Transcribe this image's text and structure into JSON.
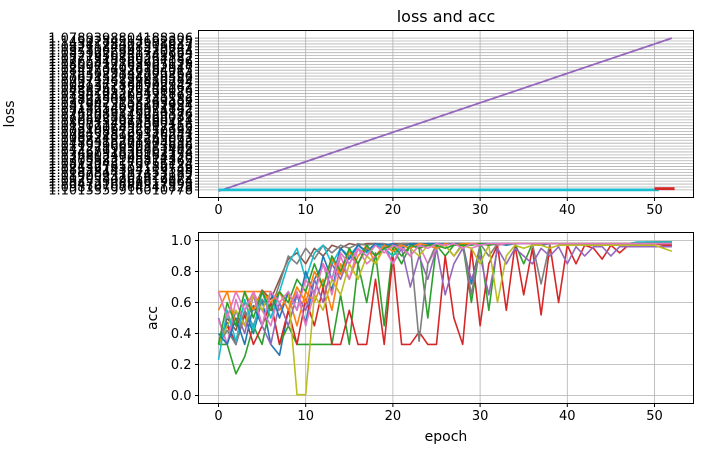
{
  "title": "loss and acc",
  "palette": [
    "#1f77b4",
    "#ff7f0e",
    "#2ca02c",
    "#d62728",
    "#9467bd",
    "#8c564b",
    "#e377c2",
    "#7f7f7f",
    "#bcbd22",
    "#17becf"
  ],
  "grid_color": "#b0b0b0",
  "chart_data": [
    {
      "type": "line",
      "id": "loss-subplot",
      "title": "loss and acc",
      "xlabel": "",
      "ylabel": "loss",
      "grid": true,
      "legend": "none",
      "x_ticks": [
        0,
        10,
        20,
        30,
        40,
        50
      ],
      "xlim": [
        -2.6,
        54.6
      ],
      "y_axis_type": "categorical-strings",
      "y_categories_bottom_to_top": [
        "1.1013359916010778",
        "1.0981070764541828",
        "1.1047216698917393",
        "1.0925330968819864",
        "1.1120584201812872",
        "1.0890023707427162",
        "1.1187344117453185",
        "1.0853914304119548",
        "1.1243276559182736",
        "1.0812045170756124",
        "1.1305982140871265",
        "1.0778123905514370",
        "1.1368054920163258",
        "1.0746291836502174",
        "1.1422719350861482",
        "1.0719296090313686",
        "1.1480356271904835",
        "1.0798413268745092",
        "1.1037240981265073",
        "1.0764528109376241",
        "1.1094083726150934",
        "1.0731906452817365",
        "1.1150217834092156",
        "1.0807134962580413",
        "1.1206452918360724",
        "1.0775028341965087",
        "1.1262083149250376",
        "1.0743916278054192",
        "1.1318254036971842",
        "1.0819473605182934",
        "1.1374029158263407",
        "1.0786250917340586",
        "1.1430184260735192",
        "1.0754108263491875",
        "1.1486245370158026",
        "1.0829361750248163",
        "1.1041372861502947",
        "1.0797245138620754",
        "1.1097458236910582",
        "1.0765132084729356",
        "1.1153629147805263",
        "1.0841507926384015",
        "1.1209734058162947",
        "1.0809412763905128",
        "1.1265840169257036",
        "1.0777319850264187",
        "1.1321956280341925",
        "1.0853226941730864",
        "1.1378062391420753",
        "1.0821134028519642",
        "1.1434178402501937",
        "1.1490284513692825",
        "1.0789398804188306"
      ],
      "series": [
        {
          "color": "#9467bd",
          "width": 1.8,
          "points": [
            [
              0,
              -0.4
            ],
            [
              52,
              52
            ]
          ]
        },
        {
          "color": "#17becf",
          "width": 2.8,
          "points": [
            [
              0,
              0
            ],
            [
              50.5,
              0
            ]
          ]
        },
        {
          "color": "#d62728",
          "width": 2.8,
          "points": [
            [
              50,
              0.4
            ],
            [
              52.3,
              0.4
            ]
          ]
        }
      ]
    },
    {
      "type": "line",
      "id": "acc-subplot",
      "xlabel": "epoch",
      "ylabel": "acc",
      "grid": true,
      "legend": "none",
      "x_ticks": [
        0,
        10,
        20,
        30,
        40,
        50
      ],
      "xlim": [
        -2.6,
        54.6
      ],
      "ylim": [
        -0.05,
        1.05
      ],
      "y_tick_values": [
        0.0,
        0.2,
        0.4,
        0.6,
        0.8,
        1.0
      ],
      "y_tick_labels": [
        "0.0",
        "0.2",
        "0.4",
        "0.6",
        "0.8",
        "1.0"
      ],
      "series": [
        {
          "color": "#1f77b4",
          "values": [
            0.33,
            0.47,
            0.33,
            0.55,
            0.4,
            0.62,
            0.33,
            0.26,
            0.55,
            0.65,
            0.47,
            0.75,
            0.85,
            0.68,
            0.92,
            0.85,
            0.95,
            0.9,
            0.97,
            0.95,
            0.98,
            0.97,
            0.98,
            0.96,
            0.98,
            0.98,
            0.97,
            0.98,
            0.98,
            0.72,
            0.97,
            0.98,
            0.98,
            0.97,
            0.98,
            0.98,
            0.98,
            0.97,
            0.98,
            0.98,
            0.98,
            0.98,
            0.98,
            0.98,
            0.98,
            0.98,
            0.98,
            0.98,
            0.98,
            0.98,
            0.98,
            0.98,
            0.98
          ]
        },
        {
          "color": "#ff7f0e",
          "values": [
            0.67,
            0.67,
            0.67,
            0.67,
            0.67,
            0.67,
            0.67,
            0.55,
            0.65,
            0.45,
            0.67,
            0.6,
            0.75,
            0.55,
            0.85,
            0.75,
            0.9,
            0.97,
            0.85,
            0.97,
            0.95,
            0.98,
            0.98,
            0.98,
            0.97,
            0.98,
            0.98,
            0.98,
            0.98,
            0.98,
            0.98,
            0.98,
            0.97,
            0.98,
            0.98,
            0.98,
            0.98,
            0.98,
            0.98,
            0.98,
            0.98,
            0.98,
            0.98,
            0.98,
            0.98,
            0.98,
            0.98,
            0.98,
            0.98,
            0.98,
            0.98,
            0.98,
            0.98
          ]
        },
        {
          "color": "#2ca02c",
          "values": [
            0.33,
            0.33,
            0.14,
            0.25,
            0.45,
            0.33,
            0.6,
            0.33,
            0.45,
            0.33,
            0.33,
            0.33,
            0.33,
            0.33,
            0.65,
            0.33,
            0.85,
            0.6,
            0.92,
            0.45,
            0.95,
            0.85,
            0.97,
            0.95,
            0.5,
            0.97,
            0.9,
            0.97,
            0.98,
            0.6,
            0.97,
            0.55,
            0.97,
            0.98,
            0.98,
            0.85,
            0.98,
            0.98,
            0.98,
            0.98,
            0.98,
            0.98,
            0.98,
            0.98,
            0.98,
            0.98,
            0.98,
            0.98,
            0.98,
            0.99,
            0.99,
            0.99,
            0.99
          ]
        },
        {
          "color": "#d62728",
          "values": [
            0.33,
            0.45,
            0.33,
            0.52,
            0.33,
            0.45,
            0.6,
            0.33,
            0.55,
            0.33,
            0.62,
            0.45,
            0.7,
            0.33,
            0.33,
            0.55,
            0.33,
            0.33,
            0.75,
            0.33,
            0.9,
            0.33,
            0.33,
            0.41,
            0.33,
            0.33,
            0.9,
            0.5,
            0.33,
            0.95,
            0.45,
            0.85,
            0.97,
            0.55,
            0.97,
            0.65,
            0.95,
            0.52,
            0.97,
            0.6,
            0.97,
            0.85,
            0.97,
            0.95,
            0.88,
            0.97,
            0.92,
            0.97,
            0.97,
            0.98,
            0.98,
            0.97,
            0.97
          ]
        },
        {
          "color": "#9467bd",
          "values": [
            0.5,
            0.33,
            0.55,
            0.4,
            0.65,
            0.45,
            0.33,
            0.6,
            0.45,
            0.65,
            0.55,
            0.75,
            0.6,
            0.85,
            0.75,
            0.9,
            0.85,
            0.95,
            0.9,
            0.97,
            0.85,
            0.95,
            0.7,
            0.9,
            0.75,
            0.95,
            0.65,
            0.85,
            0.95,
            0.75,
            0.9,
            0.65,
            0.95,
            0.85,
            0.95,
            0.9,
            0.85,
            0.95,
            0.9,
            0.96,
            0.85,
            0.96,
            0.9,
            0.96,
            0.96,
            0.9,
            0.96,
            0.96,
            0.96,
            0.96,
            0.96,
            0.96,
            0.96
          ]
        },
        {
          "color": "#8c564b",
          "values": [
            0.33,
            0.5,
            0.42,
            0.6,
            0.55,
            0.68,
            0.62,
            0.75,
            0.88,
            0.92,
            0.85,
            0.95,
            0.9,
            0.97,
            0.95,
            0.98,
            0.97,
            0.98,
            0.98,
            0.97,
            0.98,
            0.98,
            0.98,
            0.98,
            0.98,
            0.98,
            0.98,
            0.98,
            0.98,
            0.98,
            0.98,
            0.98,
            0.98,
            0.98,
            0.98,
            0.98,
            0.98,
            0.98,
            0.98,
            0.98,
            0.98,
            0.98,
            0.98,
            0.98,
            0.98,
            0.98,
            0.98,
            0.98,
            0.98,
            0.98,
            0.99,
            0.99,
            0.99
          ]
        },
        {
          "color": "#e377c2",
          "values": [
            0.49,
            0.33,
            0.62,
            0.45,
            0.67,
            0.55,
            0.45,
            0.67,
            0.55,
            0.67,
            0.45,
            0.67,
            0.85,
            0.65,
            0.9,
            0.75,
            0.95,
            0.85,
            0.9,
            0.95,
            0.85,
            0.97,
            0.9,
            0.97,
            0.85,
            0.95,
            0.97,
            0.9,
            0.97,
            0.95,
            0.97,
            0.98,
            0.97,
            0.98,
            0.98,
            0.98,
            0.98,
            0.98,
            0.98,
            0.98,
            0.98,
            0.98,
            0.98,
            0.98,
            0.98,
            0.98,
            0.98,
            0.98,
            0.98,
            0.98,
            0.98,
            0.98,
            0.98
          ]
        },
        {
          "color": "#7f7f7f",
          "values": [
            0.33,
            0.42,
            0.33,
            0.55,
            0.45,
            0.62,
            0.55,
            0.72,
            0.9,
            0.85,
            0.95,
            0.88,
            0.97,
            0.92,
            0.97,
            0.95,
            0.98,
            0.97,
            0.98,
            0.98,
            0.97,
            0.98,
            0.98,
            0.35,
            0.85,
            0.98,
            0.97,
            0.9,
            0.98,
            0.65,
            0.98,
            0.9,
            0.98,
            0.98,
            0.98,
            0.98,
            0.98,
            0.72,
            0.98,
            0.98,
            0.98,
            0.98,
            0.98,
            0.98,
            0.98,
            0.98,
            0.98,
            0.98,
            0.98,
            0.98,
            0.98,
            0.98,
            0.98
          ]
        },
        {
          "color": "#bcbd22",
          "values": [
            0.33,
            0.45,
            0.55,
            0.45,
            0.65,
            0.55,
            0.67,
            0.6,
            0.67,
            0.005,
            0.005,
            0.65,
            0.55,
            0.75,
            0.65,
            0.85,
            0.75,
            0.9,
            0.85,
            0.95,
            0.9,
            0.97,
            0.95,
            0.9,
            0.97,
            0.95,
            0.97,
            0.9,
            0.97,
            0.95,
            0.85,
            0.97,
            0.6,
            0.9,
            0.97,
            0.95,
            0.97,
            0.97,
            0.95,
            0.97,
            0.97,
            0.97,
            0.97,
            0.97,
            0.97,
            0.97,
            0.97,
            0.97,
            0.97,
            0.97,
            0.97,
            0.95,
            0.93
          ]
        },
        {
          "color": "#17becf",
          "values": [
            0.23,
            0.55,
            0.35,
            0.62,
            0.42,
            0.67,
            0.5,
            0.67,
            0.85,
            0.95,
            0.75,
            0.92,
            0.97,
            0.85,
            0.95,
            0.9,
            0.97,
            0.92,
            0.98,
            0.95,
            0.9,
            0.97,
            0.95,
            0.98,
            0.97,
            0.95,
            0.98,
            0.97,
            0.98,
            0.98,
            0.97,
            0.98,
            0.98,
            0.98,
            0.98,
            0.98,
            0.98,
            0.98,
            0.98,
            0.98,
            0.98,
            0.98,
            0.98,
            0.98,
            0.98,
            0.98,
            0.98,
            0.98,
            0.99,
            0.99,
            0.99,
            0.99,
            0.99
          ]
        },
        {
          "color": "#1f77b4",
          "values": [
            0.4,
            0.33,
            0.5,
            0.33,
            0.58,
            0.45,
            0.67,
            0.5,
            0.67,
            0.55,
            0.8,
            0.65,
            0.9,
            0.75,
            0.95,
            0.88,
            0.97,
            0.93,
            0.98,
            0.97,
            0.98,
            0.95,
            0.98,
            0.98,
            0.98,
            0.98,
            0.98,
            0.98,
            0.98,
            0.98,
            0.98,
            0.98,
            0.98,
            0.98,
            0.98,
            0.98,
            0.98,
            0.98,
            0.98,
            0.98,
            0.98,
            0.98,
            0.98,
            0.98,
            0.98,
            0.98,
            0.98,
            0.98,
            0.98,
            0.98,
            0.98,
            0.98,
            0.98
          ]
        },
        {
          "color": "#ff7f0e",
          "values": [
            0.55,
            0.67,
            0.45,
            0.67,
            0.55,
            0.67,
            0.6,
            0.67,
            0.55,
            0.7,
            0.6,
            0.8,
            0.7,
            0.88,
            0.78,
            0.93,
            0.85,
            0.96,
            0.9,
            0.97,
            0.93,
            0.97,
            0.95,
            0.98,
            0.97,
            0.95,
            0.98,
            0.97,
            0.98,
            0.98,
            0.98,
            0.97,
            0.98,
            0.98,
            0.98,
            0.98,
            0.98,
            0.98,
            0.98,
            0.98,
            0.98,
            0.98,
            0.98,
            0.98,
            0.98,
            0.98,
            0.98,
            0.98,
            0.98,
            0.98,
            0.98,
            0.98,
            0.98
          ]
        },
        {
          "color": "#2ca02c",
          "values": [
            0.33,
            0.6,
            0.45,
            0.67,
            0.5,
            0.67,
            0.55,
            0.67,
            0.6,
            0.75,
            0.67,
            0.85,
            0.7,
            0.9,
            0.8,
            0.95,
            0.85,
            0.97,
            0.9,
            0.95,
            0.97,
            0.9,
            0.97,
            0.95,
            0.97,
            0.97,
            0.95,
            0.97,
            0.97,
            0.97,
            0.98,
            0.97,
            0.98,
            0.98,
            0.98,
            0.98,
            0.98,
            0.98,
            0.98,
            0.98,
            0.98,
            0.98,
            0.98,
            0.98,
            0.98,
            0.98,
            0.98,
            0.98,
            0.98,
            0.98,
            0.98,
            0.98,
            0.98
          ]
        },
        {
          "color": "#e377c2",
          "values": [
            0.67,
            0.5,
            0.67,
            0.55,
            0.67,
            0.45,
            0.67,
            0.6,
            0.67,
            0.55,
            0.75,
            0.65,
            0.85,
            0.75,
            0.92,
            0.85,
            0.95,
            0.9,
            0.97,
            0.92,
            0.97,
            0.95,
            0.9,
            0.97,
            0.95,
            0.98,
            0.97,
            0.98,
            0.95,
            0.98,
            0.97,
            0.98,
            0.98,
            0.98,
            0.98,
            0.98,
            0.98,
            0.98,
            0.98,
            0.98,
            0.98,
            0.98,
            0.98,
            0.98,
            0.98,
            0.98,
            0.98,
            0.98,
            0.98,
            0.98,
            0.98,
            0.98,
            0.98
          ]
        }
      ]
    }
  ]
}
